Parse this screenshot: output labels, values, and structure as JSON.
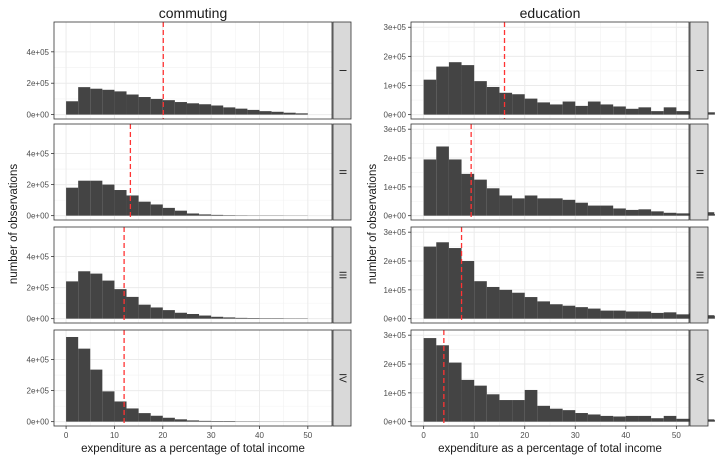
{
  "chart_data": {
    "type": "histogram-facet-grid",
    "xlabel": "expenditure as a percentage of total income",
    "ylabel": "number of observations",
    "x_ticks": [
      0,
      10,
      20,
      30,
      40,
      50
    ],
    "bin_width": 2.5,
    "bar_color": "#444444",
    "median_line_color": "#ff3333",
    "grid": true,
    "columns": [
      {
        "title": "commuting",
        "xlim": [
          -2.5,
          55
        ],
        "y_ticks": [
          {
            "value": 0,
            "label": "0e+00"
          },
          {
            "value": 200000,
            "label": "2e+05"
          },
          {
            "value": 400000,
            "label": "4e+05"
          }
        ],
        "ylim": [
          -28000,
          590000
        ],
        "rows": [
          {
            "strip": "I",
            "median_line": 20.1,
            "counts": [
              85000,
              175000,
              165000,
              158000,
              148000,
              128000,
              112000,
              100000,
              92000,
              80000,
              72000,
              66000,
              58000,
              46000,
              38000,
              30000,
              22000,
              18000,
              12000,
              8000
            ]
          },
          {
            "strip": "II",
            "median_line": 13.3,
            "counts": [
              180000,
              225000,
              225000,
              200000,
              165000,
              130000,
              90000,
              72000,
              50000,
              32000,
              14000,
              8000,
              5000,
              3000,
              2000,
              1500,
              1500,
              1500,
              1000,
              1000
            ]
          },
          {
            "strip": "III",
            "median_line": 12.0,
            "counts": [
              240000,
              305000,
              290000,
              245000,
              190000,
              140000,
              90000,
              72000,
              55000,
              38000,
              30000,
              20000,
              12000,
              8000,
              5000,
              4000,
              3000,
              3000,
              2000,
              2000
            ]
          },
          {
            "strip": "IV",
            "median_line": 12.0,
            "counts": [
              545000,
              470000,
              335000,
              195000,
              130000,
              85000,
              55000,
              38000,
              25000,
              15000,
              8000,
              5000,
              4000,
              4000,
              2000,
              2000,
              1000,
              1000,
              1000,
              1000
            ]
          }
        ]
      },
      {
        "title": "education",
        "xlim": [
          -2.5,
          52.5
        ],
        "y_ticks": [
          {
            "value": 0,
            "label": "0e+00"
          },
          {
            "value": 100000,
            "label": "1e+05"
          },
          {
            "value": 200000,
            "label": "2e+05"
          },
          {
            "value": 300000,
            "label": "3e+05"
          }
        ],
        "ylim": [
          -15000,
          318000
        ],
        "rows": [
          {
            "strip": "I",
            "median_line": 16.0,
            "counts": [
              120000,
              165000,
              180000,
              170000,
              115000,
              95000,
              75000,
              70000,
              55000,
              42000,
              35000,
              45000,
              30000,
              45000,
              35000,
              28000,
              20000,
              25000,
              12000,
              25000,
              12000,
              10000,
              8000,
              8000,
              5000
            ]
          },
          {
            "strip": "II",
            "median_line": 9.4,
            "counts": [
              195000,
              240000,
              195000,
              145000,
              125000,
              95000,
              70000,
              60000,
              70000,
              60000,
              60000,
              55000,
              45000,
              35000,
              35000,
              25000,
              20000,
              22000,
              15000,
              10000,
              8000,
              8000,
              12000,
              6000,
              4000
            ]
          },
          {
            "strip": "III",
            "median_line": 7.5,
            "counts": [
              250000,
              265000,
              245000,
              200000,
              130000,
              110000,
              100000,
              90000,
              75000,
              60000,
              50000,
              45000,
              40000,
              35000,
              28000,
              28000,
              25000,
              25000,
              20000,
              22000,
              15000,
              18000,
              12000,
              10000,
              12000
            ]
          },
          {
            "strip": "IV",
            "median_line": 4.0,
            "counts": [
              290000,
              265000,
              205000,
              145000,
              125000,
              95000,
              75000,
              75000,
              110000,
              55000,
              45000,
              40000,
              30000,
              25000,
              20000,
              18000,
              20000,
              20000,
              12000,
              20000,
              10000,
              10000,
              8000,
              6000,
              5000
            ]
          }
        ]
      }
    ]
  }
}
